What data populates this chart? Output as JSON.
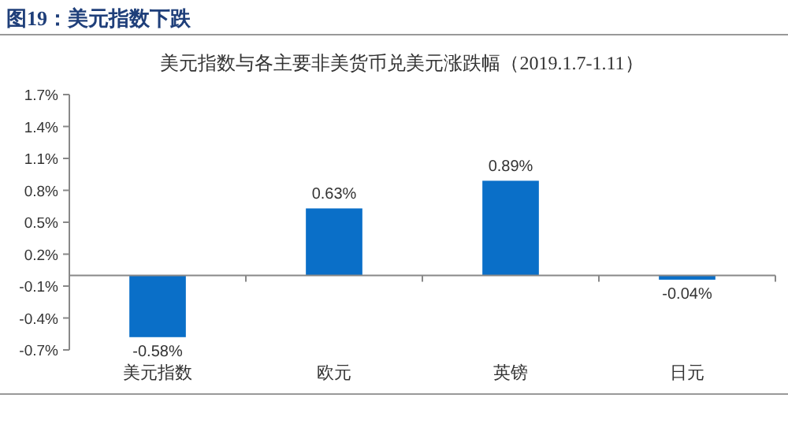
{
  "chart_data": {
    "type": "bar",
    "title": "图19：美元指数下跌",
    "subtitle": "美元指数与各主要非美货币兑美元涨跌幅（2019.1.7-1.11）",
    "categories": [
      "美元指数",
      "欧元",
      "英镑",
      "日元"
    ],
    "values": [
      -0.58,
      0.63,
      0.89,
      -0.04
    ],
    "value_labels": [
      "-0.58%",
      "0.63%",
      "0.89%",
      "-0.04%"
    ],
    "color": "#0a6fc8",
    "ylim": [
      -0.7,
      1.7
    ],
    "yticks": [
      {
        "value": 1.7,
        "label": "1.7%"
      },
      {
        "value": 1.4,
        "label": "1.4%"
      },
      {
        "value": 1.1,
        "label": "1.1%"
      },
      {
        "value": 0.8,
        "label": "0.8%"
      },
      {
        "value": 0.5,
        "label": "0.5%"
      },
      {
        "value": 0.2,
        "label": "0.2%"
      },
      {
        "value": -0.1,
        "label": "-0.1%"
      },
      {
        "value": -0.4,
        "label": "-0.4%"
      },
      {
        "value": -0.7,
        "label": "-0.7%"
      }
    ],
    "grid": false
  }
}
